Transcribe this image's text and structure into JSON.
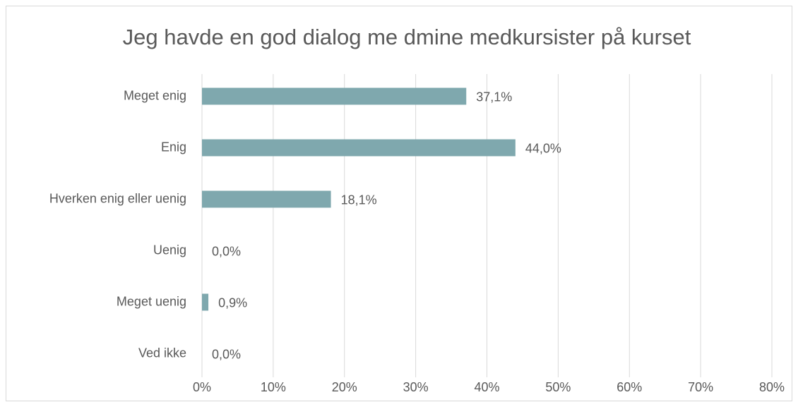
{
  "chart_data": {
    "type": "bar",
    "orientation": "horizontal",
    "title": "Jeg havde en god dialog me dmine medkursister på kurset",
    "categories": [
      "Meget enig",
      "Enig",
      "Hverken enig eller uenig",
      "Uenig",
      "Meget uenig",
      "Ved ikke"
    ],
    "values": [
      37.1,
      44.0,
      18.1,
      0.0,
      0.9,
      0.0
    ],
    "value_labels": [
      "37,1%",
      "44,0%",
      "18,1%",
      "0,0%",
      "0,9%",
      "0,0%"
    ],
    "color": "#7fa8ae",
    "xlim": [
      0,
      80
    ],
    "xticks": [
      {
        "value": 0,
        "label": "0%"
      },
      {
        "value": 10,
        "label": "10%"
      },
      {
        "value": 20,
        "label": "20%"
      },
      {
        "value": 30,
        "label": "30%"
      },
      {
        "value": 40,
        "label": "40%"
      },
      {
        "value": 50,
        "label": "50%"
      },
      {
        "value": 60,
        "label": "60%"
      },
      {
        "value": 70,
        "label": "70%"
      },
      {
        "value": 80,
        "label": "80%"
      }
    ],
    "grid": true
  }
}
